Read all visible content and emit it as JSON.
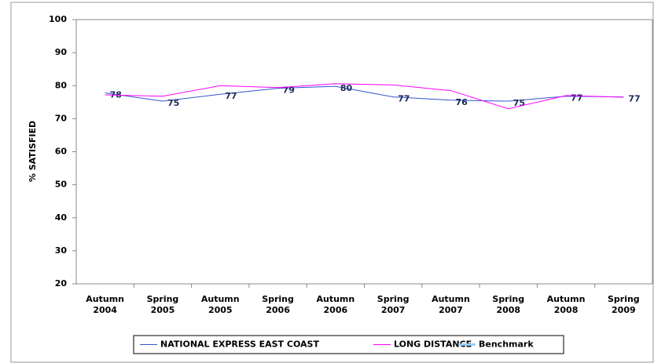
{
  "chart_data": {
    "type": "line",
    "y_label": "% SATISFIED",
    "categories": [
      "Autumn 2004",
      "Spring 2005",
      "Autumn 2005",
      "Spring 2006",
      "Autumn 2006",
      "Spring 2007",
      "Autumn 2007",
      "Spring 2008",
      "Autumn 2008",
      "Spring 2009"
    ],
    "series": [
      {
        "name": "NATIONAL EXPRESS EAST COAST",
        "color": "#3355cc",
        "values": [
          77.8,
          75.3,
          77.4,
          79.2,
          79.8,
          76.6,
          75.6,
          75.3,
          76.8,
          76.6
        ],
        "value_labels": [
          "78",
          "75",
          "77",
          "79",
          "80",
          "77",
          "76",
          "75",
          "77",
          "77"
        ]
      },
      {
        "name": "LONG DISTANCE",
        "color": "#ff00ff",
        "values": [
          77.2,
          76.8,
          80.0,
          79.4,
          80.6,
          80.2,
          78.5,
          73.0,
          77.0,
          76.5
        ]
      },
      {
        "name": "Benchmark",
        "color": "#99ccff",
        "values": [
          null,
          null,
          null,
          null,
          null,
          null,
          null,
          null,
          null,
          null
        ]
      }
    ],
    "ylim": [
      20,
      100
    ],
    "yticks": [
      20,
      30,
      40,
      50,
      60,
      70,
      80,
      90,
      100
    ],
    "grid": false
  }
}
